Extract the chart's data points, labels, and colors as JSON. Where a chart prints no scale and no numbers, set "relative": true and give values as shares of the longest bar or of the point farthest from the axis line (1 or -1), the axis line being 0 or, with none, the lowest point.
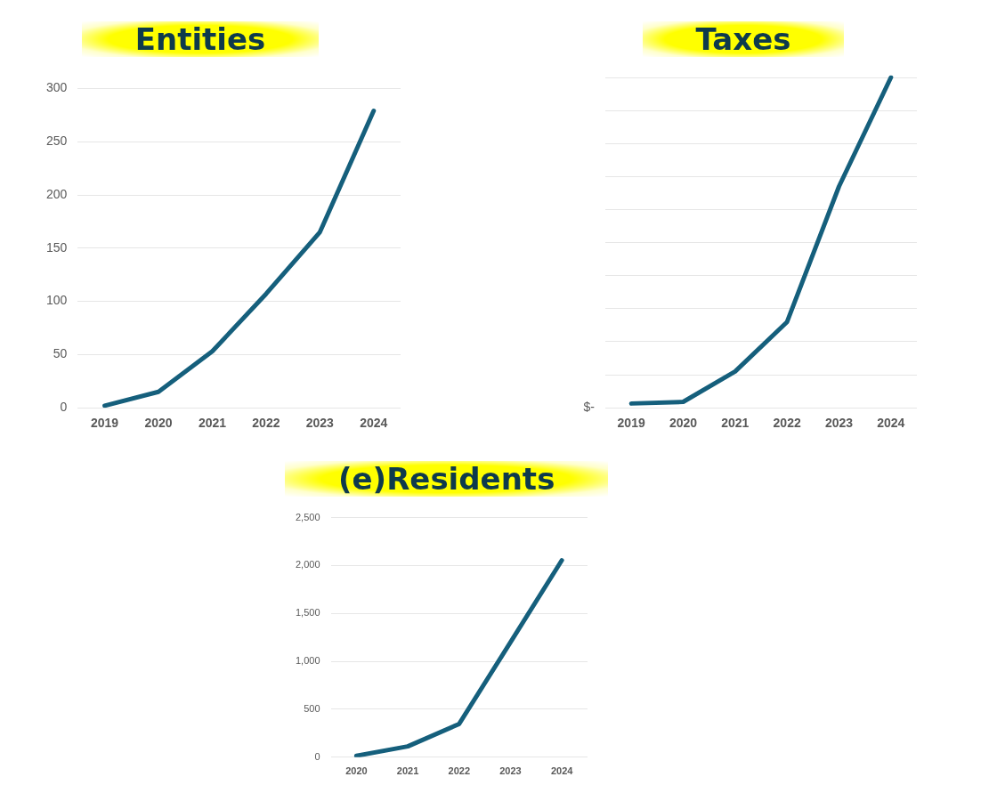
{
  "chart_data": [
    {
      "type": "line",
      "title": "Entities",
      "categories": [
        "2019",
        "2020",
        "2021",
        "2022",
        "2023",
        "2024"
      ],
      "series": [
        {
          "color": "#155f7c",
          "values": [
            2,
            15,
            53,
            107,
            165,
            279
          ]
        }
      ],
      "ylim": [
        0,
        300
      ],
      "yticks": [
        0,
        50,
        100,
        150,
        200,
        250,
        300
      ],
      "grid": "y",
      "legend": false,
      "marker": "none"
    },
    {
      "type": "line",
      "title": "Taxes",
      "categories": [
        "2019",
        "2020",
        "2021",
        "2022",
        "2023",
        "2024"
      ],
      "series": [
        {
          "color": "#155f7c",
          "values": [
            0.013,
            0.018,
            0.11,
            0.26,
            0.67,
            1
          ]
        }
      ],
      "relative": true,
      "annotations": [
        "$-"
      ],
      "grid": "y",
      "legend": false,
      "marker": "none"
    },
    {
      "type": "line",
      "title": "(e)Residents",
      "categories": [
        "2020",
        "2021",
        "2022",
        "2023",
        "2024"
      ],
      "series": [
        {
          "color": "#155f7c",
          "values": [
            15,
            113,
            347,
            1200,
            2055
          ]
        }
      ],
      "ylim": [
        0,
        2500
      ],
      "yticks": [
        0,
        500,
        {
          "value": 1000,
          "label": "1,000"
        },
        {
          "value": 1500,
          "label": "1,500"
        },
        {
          "value": 2000,
          "label": "2,000"
        },
        {
          "value": 2500,
          "label": "2,500"
        }
      ],
      "grid": "y",
      "legend": false,
      "marker": "none"
    }
  ]
}
